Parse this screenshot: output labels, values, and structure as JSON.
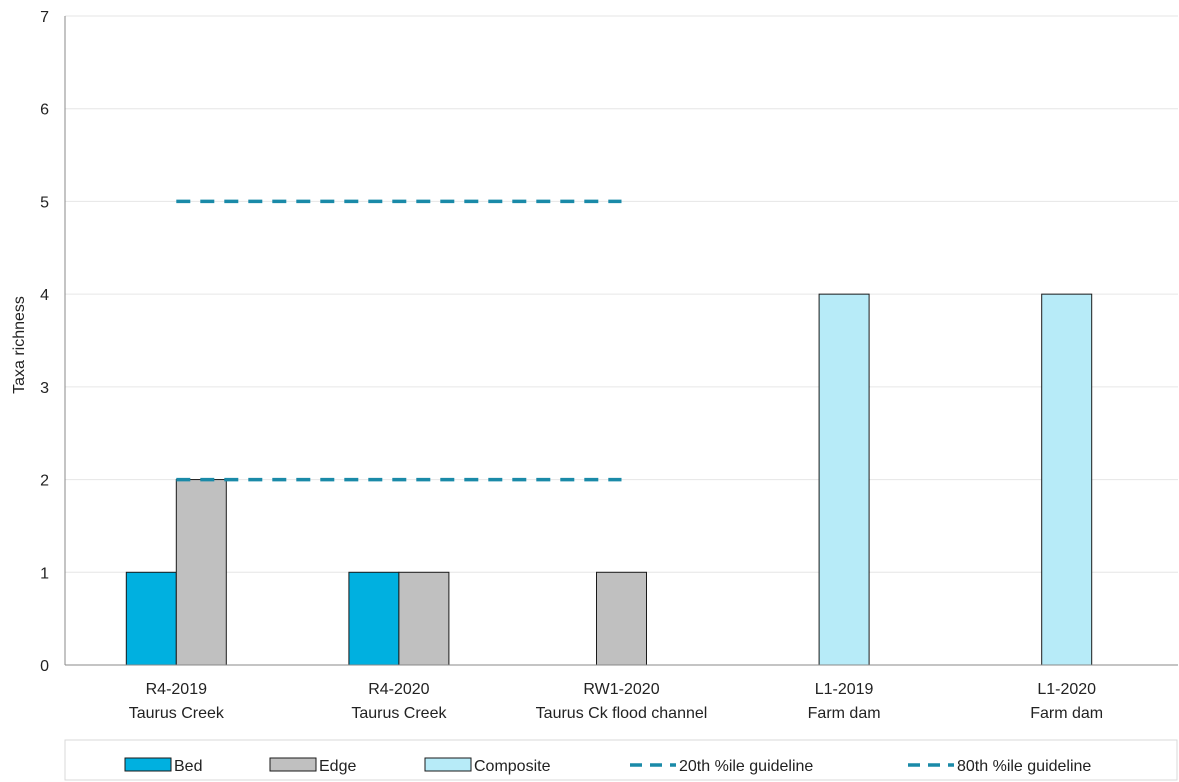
{
  "chart_data": {
    "type": "bar",
    "ylabel": "Taxa richness",
    "xlabel": "",
    "ylim": [
      0,
      7
    ],
    "yticks": [
      0,
      1,
      2,
      3,
      4,
      5,
      6,
      7
    ],
    "grid": true,
    "legend_position": "bottom",
    "categories": [
      {
        "line1": "R4-2019",
        "line2": "Taurus Creek"
      },
      {
        "line1": "R4-2020",
        "line2": "Taurus Creek"
      },
      {
        "line1": "RW1-2020",
        "line2": "Taurus Ck flood channel"
      },
      {
        "line1": "L1-2019",
        "line2": "Farm dam"
      },
      {
        "line1": "L1-2020",
        "line2": "Farm dam"
      }
    ],
    "series": [
      {
        "name": "Bed",
        "color": "#00b0e0",
        "values": [
          1,
          1,
          null,
          null,
          null
        ]
      },
      {
        "name": "Edge",
        "color": "#c0c0c0",
        "values": [
          2,
          1,
          1,
          null,
          null
        ]
      },
      {
        "name": "Composite",
        "color": "#b7ebf8",
        "values": [
          null,
          null,
          null,
          4,
          4
        ]
      }
    ],
    "guidelines": [
      {
        "name": "20th %ile guideline",
        "color": "#1a8aa8",
        "value": 2,
        "categories": [
          0,
          2
        ]
      },
      {
        "name": "80th %ile guideline",
        "color": "#1a8aa8",
        "value": 5,
        "categories": [
          0,
          2
        ]
      }
    ]
  }
}
